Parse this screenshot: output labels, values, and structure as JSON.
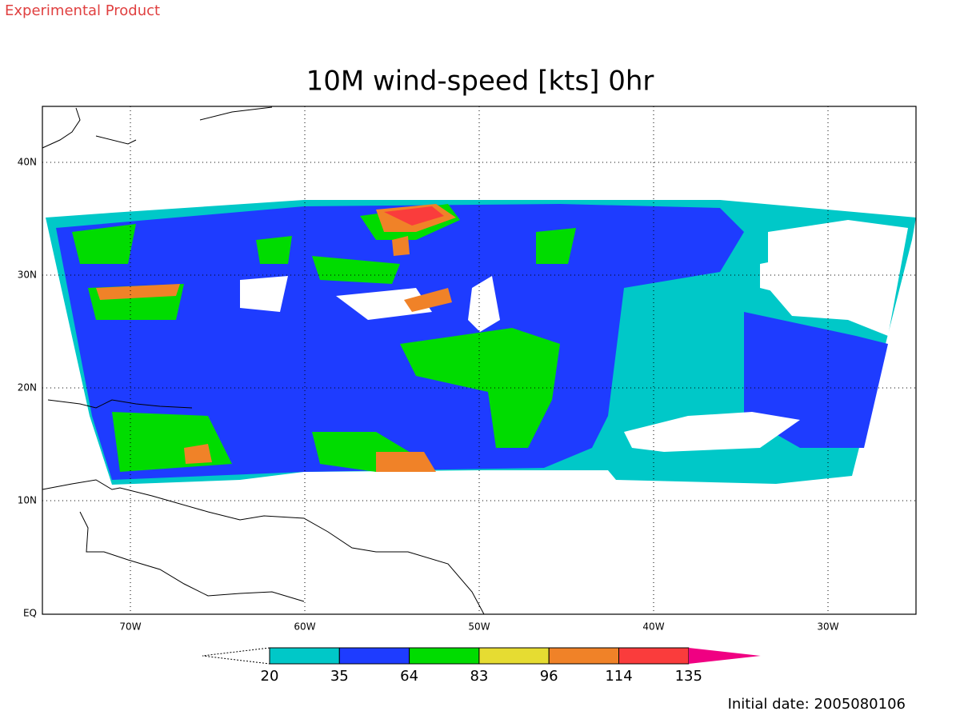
{
  "header": {
    "note": "Experimental Product",
    "title": "10M wind-speed [kts] 0hr"
  },
  "map": {
    "lat_labels": [
      "40N",
      "30N",
      "20N",
      "10N",
      "EQ"
    ],
    "lon_labels": [
      "70W",
      "60W",
      "50W",
      "40W",
      "30W"
    ]
  },
  "colorbar": {
    "levels": [
      20,
      35,
      64,
      83,
      96,
      114,
      135
    ],
    "colors": [
      "#00c8c8",
      "#1e3cff",
      "#00dc00",
      "#e6dc32",
      "#f08228",
      "#fa3c3c",
      "#f00082"
    ]
  },
  "footer": {
    "initial_date": "Initial date: 2005080106"
  }
}
